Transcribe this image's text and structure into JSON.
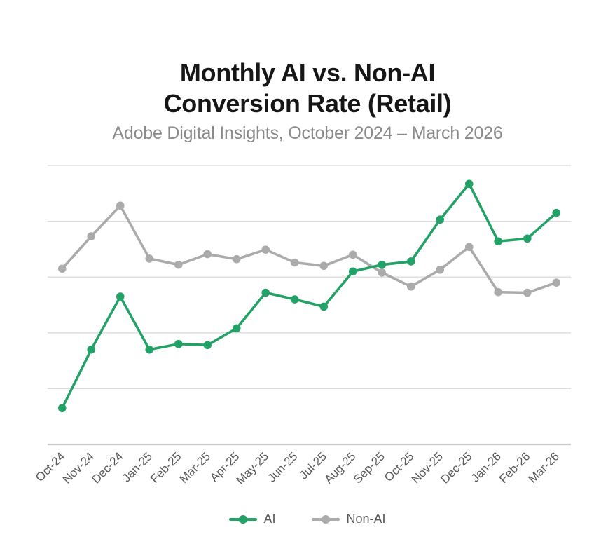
{
  "header": {
    "title_line1": "Monthly AI vs. Non-AI",
    "title_line2": "Conversion Rate (Retail)",
    "subtitle": "Adobe Digital Insights, October 2024 – March 2026"
  },
  "chart_data": {
    "type": "line",
    "title": "Monthly AI vs. Non-AI Conversion Rate (Retail)",
    "subtitle": "Adobe Digital Insights, October 2024 – March 2026",
    "categories": [
      "Oct-24",
      "Nov-24",
      "Dec-24",
      "Jan-25",
      "Feb-25",
      "Mar-25",
      "Apr-25",
      "May-25",
      "Jun-25",
      "Jul-25",
      "Aug-25",
      "Sep-25",
      "Oct-25",
      "Nov-25",
      "Dec-25",
      "Jan-26",
      "Feb-26",
      "Mar-26"
    ],
    "series": [
      {
        "name": "AI",
        "color": "#22A266",
        "values": [
          0.65,
          1.7,
          2.65,
          1.7,
          1.8,
          1.78,
          2.08,
          2.72,
          2.6,
          2.47,
          3.1,
          3.22,
          3.28,
          4.03,
          4.67,
          3.64,
          3.69,
          4.15
        ]
      },
      {
        "name": "Non-AI",
        "color": "#ABABAB",
        "values": [
          3.15,
          3.73,
          4.28,
          3.33,
          3.22,
          3.41,
          3.32,
          3.49,
          3.26,
          3.2,
          3.4,
          3.08,
          2.83,
          3.13,
          3.54,
          2.73,
          2.72,
          2.9
        ]
      }
    ],
    "ylim": [
      0,
      5
    ],
    "y_gridline_step": 1,
    "y_axis_labels_visible": false,
    "x_label_rotation_deg": -45,
    "grid": true,
    "legend_position": "bottom",
    "axis_label_color": "#595959",
    "gridline_color": "#DBDBDB",
    "axis_line_color": "#C9C9C9",
    "background_color": "#FFFFFF"
  }
}
